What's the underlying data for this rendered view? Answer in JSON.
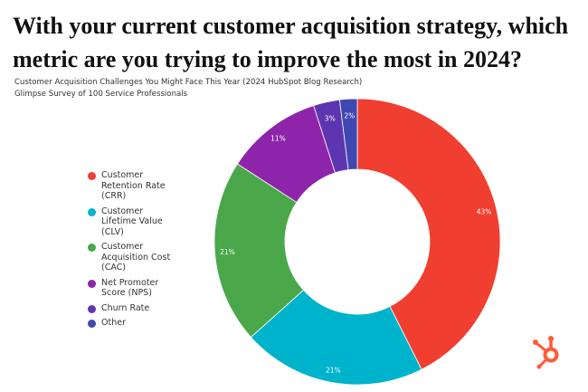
{
  "title": "With your current customer acquisition strategy, which metric are you trying to improve the most in 2024?",
  "subtitle_1": "Customer Acquisition Challenges You Might Face This Year (2024 HubSpot Blog Research)",
  "subtitle_2": "Glimpse Survey of 100 Service Professionals",
  "logo": "HubSpot",
  "chart_data": {
    "type": "pie",
    "donut": true,
    "title": "With your current customer acquisition strategy, which metric are you trying to improve the most in 2024?",
    "legend_placement": "left",
    "categories": [
      "Customer Retention Rate (CRR)",
      "Customer Lifetime Value (CLV)",
      "Customer Acquisition Cost (CAC)",
      "Net Promoter Score (NPS)",
      "Churn Rate",
      "Other"
    ],
    "legend_labels": [
      "Customer\nRetention Rate\n(CRR)",
      "Customer\nLifetime Value\n(CLV)",
      "Customer\nAcquisition Cost\n(CAC)",
      "Net Promoter\nScore (NPS)",
      "Churn Rate",
      "Other"
    ],
    "values": [
      43,
      21,
      21,
      11,
      3,
      2
    ],
    "data_labels": [
      "43%",
      "21%",
      "21%",
      "11%",
      "3%",
      "2%"
    ],
    "colors": [
      "#f03e30",
      "#00b3cc",
      "#4aa84a",
      "#8e24aa",
      "#5e35b1",
      "#3f48b0"
    ]
  }
}
